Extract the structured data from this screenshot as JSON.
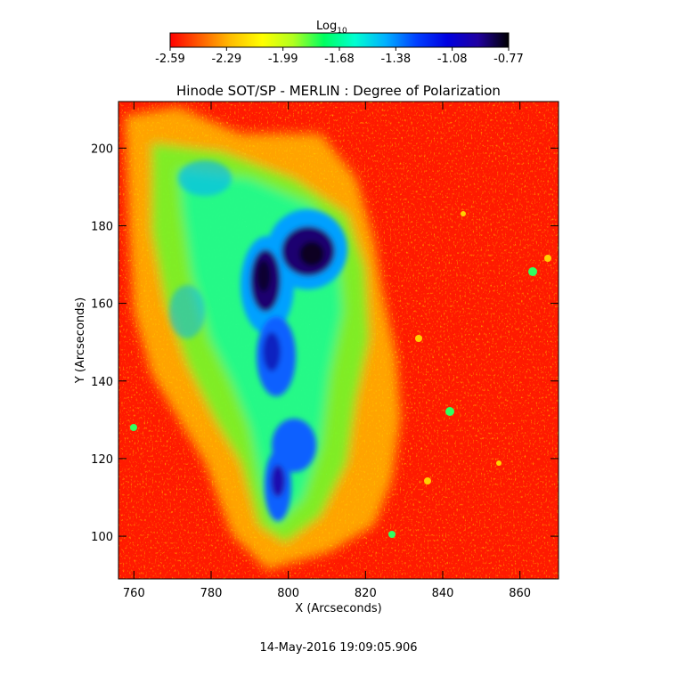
{
  "colorbar": {
    "label": "Log",
    "label_subscript": "10",
    "tick_labels": [
      "-2.59",
      "-2.29",
      "-1.99",
      "-1.68",
      "-1.38",
      "-1.08",
      "-0.77"
    ],
    "colors": [
      "#ff0000",
      "#ff6000",
      "#ffc000",
      "#ffff00",
      "#b0ff20",
      "#00ff60",
      "#00ffd0",
      "#00b0ff",
      "#0040ff",
      "#0000e0",
      "#2000a0",
      "#000000"
    ]
  },
  "plot": {
    "title": "Hinode SOT/SP - MERLIN : Degree of Polarization",
    "xlabel": "X (Arcseconds)",
    "ylabel": "Y (Arcseconds)",
    "xlim": [
      756,
      870
    ],
    "ylim": [
      89,
      212
    ],
    "xticks": [
      760,
      780,
      800,
      820,
      840,
      860
    ],
    "yticks": [
      100,
      120,
      140,
      160,
      180,
      200
    ],
    "xtick_labels": [
      "760",
      "780",
      "800",
      "820",
      "840",
      "860"
    ],
    "ytick_labels": [
      "100",
      "120",
      "140",
      "160",
      "180",
      "200"
    ]
  },
  "timestamp": "14-May-2016 19:09:05.906"
}
